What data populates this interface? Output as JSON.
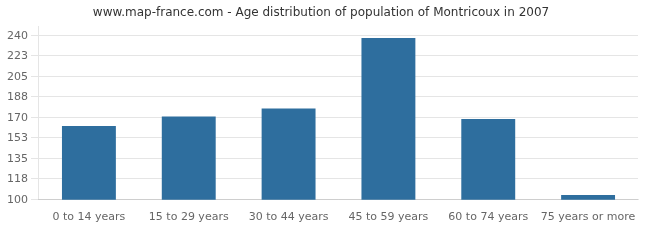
{
  "chart_data": {
    "type": "bar",
    "title": "www.map-france.com - Age distribution of population of Montricoux in 2007",
    "categories": [
      "0 to 14 years",
      "15 to 29 years",
      "30 to 44 years",
      "45 to 59 years",
      "60 to 74 years",
      "75 years or more"
    ],
    "values": [
      163,
      171,
      178,
      238,
      169,
      104
    ],
    "color": "#2e6e9e",
    "ylim": [
      100,
      248
    ],
    "yticks": [
      100,
      118,
      135,
      153,
      170,
      188,
      205,
      223,
      240
    ],
    "grid": true
  }
}
